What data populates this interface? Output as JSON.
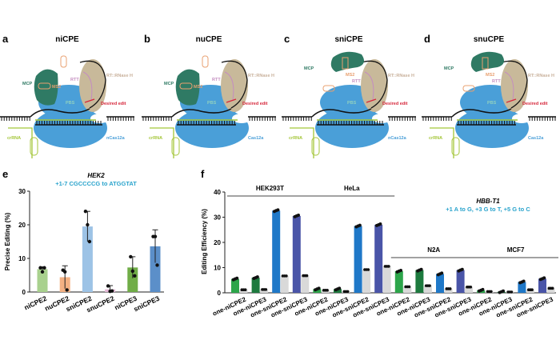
{
  "panels": [
    {
      "letter": "a",
      "title": "niCPE",
      "cas_label": "nCas12a",
      "mcp_top": false,
      "nick": true
    },
    {
      "letter": "b",
      "title": "nuCPE",
      "cas_label": "Cas12a",
      "mcp_top": false,
      "nick": false
    },
    {
      "letter": "c",
      "title": "sniCPE",
      "cas_label": "nCas12a",
      "mcp_top": true,
      "nick": true
    },
    {
      "letter": "d",
      "title": "snuCPE",
      "cas_label": "Cas12a",
      "mcp_top": true,
      "nick": false
    }
  ],
  "diagram_labels": {
    "mcp": "MCP",
    "ms2": "MS2",
    "rtt": "RTT",
    "rt": "RT::RNase H",
    "pbs": "PBS",
    "edit": "Desired edit",
    "crrna": "crRNA"
  },
  "diagram_colors": {
    "cas": "#4a9fd8",
    "rt": "#c8b99a",
    "mcp": "#2f7a64",
    "ms2": "#e8a070",
    "rtt": "#c48ec0",
    "pbs": "#8fd0c0",
    "edit": "#d6263a",
    "crrna": "#a4c639",
    "dna": "#111111"
  },
  "chart_data": [
    {
      "panel": "e",
      "type": "bar",
      "title": "HEK2",
      "subtitle": "+1-7 CGCCCCG to ATGGTAT",
      "ylabel": "Precise Editing (%)",
      "ylim": [
        0,
        30
      ],
      "yticks": [
        0,
        10,
        20,
        30
      ],
      "categories": [
        "niCPE2",
        "nuCPE2",
        "sniCPE2",
        "snuCPE2",
        "niCPE3",
        "sniCPE3"
      ],
      "values": [
        6.8,
        4.4,
        19.5,
        0.8,
        7.3,
        13.6
      ],
      "errors": [
        0.7,
        3.4,
        4.5,
        1.1,
        3.2,
        4.9
      ],
      "points": [
        [
          7.2,
          6.0,
          7.2
        ],
        [
          6.5,
          6.0,
          0.6
        ],
        [
          24.0,
          20.0,
          15.0
        ],
        [
          1.8,
          0.2,
          0.3
        ],
        [
          10.5,
          6.2,
          4.8
        ],
        [
          16.5,
          16.5,
          8.0
        ]
      ],
      "colors": [
        "#a9d18e",
        "#f4b183",
        "#9dc3e6",
        "#e6b9d8",
        "#70ad47",
        "#5b8fc9"
      ]
    },
    {
      "panel": "f",
      "type": "bar",
      "title": "HBB-T1",
      "subtitle": "+1 A to G, +3 G to T, +5 G to C",
      "ylabel": "Editing Efficiency (%)",
      "ylim": [
        0,
        40
      ],
      "yticks": [
        0,
        10,
        20,
        30,
        40
      ],
      "groups": [
        {
          "name": "HEK293T",
          "level": "high"
        },
        {
          "name": "HeLa",
          "level": "high"
        },
        {
          "name": "N2A",
          "level": "low"
        },
        {
          "name": "MCF7",
          "level": "low"
        }
      ],
      "categories": [
        "one-niCPE2",
        "one-niCPE3",
        "one-sniCPE2",
        "one-sniCPE3"
      ],
      "category_colors": [
        "#2ca54a",
        "#1d7a3e",
        "#1f78c8",
        "#4a55a8"
      ],
      "control_color": "#d9d9d9",
      "values": [
        [
          5.5,
          6.0,
          32.6,
          30.5
        ],
        [
          1.5,
          1.5,
          26.5,
          27.0
        ],
        [
          8.6,
          9.0,
          7.5,
          9.0
        ],
        [
          1.0,
          0.4,
          4.3,
          5.6
        ]
      ],
      "control_values": [
        [
          1.2,
          1.3,
          6.7,
          6.8
        ],
        [
          1.0,
          0.5,
          9.2,
          10.5
        ],
        [
          2.4,
          2.8,
          1.6,
          2.3
        ],
        [
          0.5,
          0.3,
          1.2,
          1.8
        ]
      ]
    }
  ]
}
